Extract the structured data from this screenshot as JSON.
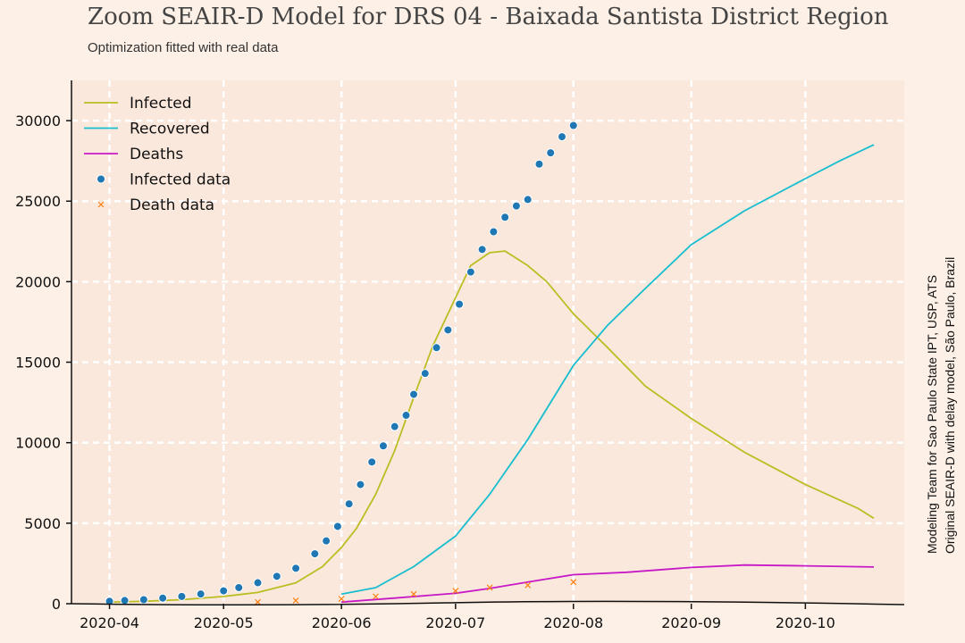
{
  "title": "Zoom SEAIR-D Model for DRS 04 - Baixada Santista District Region",
  "subtitle": "Optimization fitted with real data",
  "credits": [
    "Modeling Team for Sao Paulo State IPT, USP, ATS",
    "Original SEAIR-D with delay model, São Paulo, Brazil"
  ],
  "colors": {
    "background": "#fdf0e6",
    "plot_area": "#fae8dc",
    "infected": "#bcbd22",
    "recovered": "#17becf",
    "deaths": "#c71ac7",
    "infected_data": "#1f77b4",
    "death_data": "#ff7f0e"
  },
  "chart_data": {
    "type": "line",
    "xlabel": "",
    "ylabel": "",
    "ylim": [
      0,
      32500
    ],
    "xlim": [
      "2020-03-22",
      "2020-10-27"
    ],
    "grid": true,
    "legend_position": "top-left",
    "y_ticks": [
      0,
      5000,
      10000,
      15000,
      20000,
      25000,
      30000
    ],
    "x_ticks": [
      "2020-04",
      "2020-05",
      "2020-06",
      "2020-07",
      "2020-08",
      "2020-09",
      "2020-10"
    ],
    "series": [
      {
        "name": "Infected",
        "kind": "line",
        "points": [
          [
            "2020-04-01",
            100
          ],
          [
            "2020-04-10",
            150
          ],
          [
            "2020-04-20",
            250
          ],
          [
            "2020-05-01",
            450
          ],
          [
            "2020-05-10",
            700
          ],
          [
            "2020-05-20",
            1300
          ],
          [
            "2020-05-27",
            2300
          ],
          [
            "2020-06-01",
            3500
          ],
          [
            "2020-06-05",
            4700
          ],
          [
            "2020-06-10",
            6800
          ],
          [
            "2020-06-15",
            9500
          ],
          [
            "2020-06-20",
            12800
          ],
          [
            "2020-06-25",
            16000
          ],
          [
            "2020-07-01",
            19000
          ],
          [
            "2020-07-05",
            21000
          ],
          [
            "2020-07-10",
            21800
          ],
          [
            "2020-07-14",
            21900
          ],
          [
            "2020-07-20",
            21000
          ],
          [
            "2020-07-25",
            20000
          ],
          [
            "2020-08-01",
            18000
          ],
          [
            "2020-08-10",
            15900
          ],
          [
            "2020-08-20",
            13500
          ],
          [
            "2020-09-01",
            11500
          ],
          [
            "2020-09-15",
            9400
          ],
          [
            "2020-10-01",
            7400
          ],
          [
            "2020-10-15",
            5900
          ],
          [
            "2020-10-19",
            5300
          ]
        ]
      },
      {
        "name": "Recovered",
        "kind": "line",
        "points": [
          [
            "2020-06-01",
            600
          ],
          [
            "2020-06-10",
            1000
          ],
          [
            "2020-06-20",
            2300
          ],
          [
            "2020-07-01",
            4200
          ],
          [
            "2020-07-10",
            6800
          ],
          [
            "2020-07-20",
            10200
          ],
          [
            "2020-08-01",
            14800
          ],
          [
            "2020-08-10",
            17300
          ],
          [
            "2020-08-20",
            19600
          ],
          [
            "2020-09-01",
            22300
          ],
          [
            "2020-09-15",
            24400
          ],
          [
            "2020-10-01",
            26400
          ],
          [
            "2020-10-10",
            27500
          ],
          [
            "2020-10-19",
            28500
          ]
        ]
      },
      {
        "name": "Deaths",
        "kind": "line",
        "points": [
          [
            "2020-06-01",
            100
          ],
          [
            "2020-06-15",
            350
          ],
          [
            "2020-07-01",
            650
          ],
          [
            "2020-07-10",
            950
          ],
          [
            "2020-07-20",
            1350
          ],
          [
            "2020-08-01",
            1800
          ],
          [
            "2020-08-15",
            1950
          ],
          [
            "2020-09-01",
            2250
          ],
          [
            "2020-09-15",
            2400
          ],
          [
            "2020-10-01",
            2350
          ],
          [
            "2020-10-19",
            2280
          ]
        ]
      },
      {
        "name": "Infected data",
        "kind": "scatter",
        "points": [
          [
            "2020-04-01",
            150
          ],
          [
            "2020-04-05",
            200
          ],
          [
            "2020-04-10",
            250
          ],
          [
            "2020-04-15",
            350
          ],
          [
            "2020-04-20",
            450
          ],
          [
            "2020-04-25",
            600
          ],
          [
            "2020-05-01",
            800
          ],
          [
            "2020-05-05",
            1000
          ],
          [
            "2020-05-10",
            1300
          ],
          [
            "2020-05-15",
            1700
          ],
          [
            "2020-05-20",
            2200
          ],
          [
            "2020-05-25",
            3100
          ],
          [
            "2020-05-28",
            3900
          ],
          [
            "2020-05-31",
            4800
          ],
          [
            "2020-06-03",
            6200
          ],
          [
            "2020-06-06",
            7400
          ],
          [
            "2020-06-09",
            8800
          ],
          [
            "2020-06-12",
            9800
          ],
          [
            "2020-06-15",
            11000
          ],
          [
            "2020-06-18",
            11700
          ],
          [
            "2020-06-20",
            13000
          ],
          [
            "2020-06-23",
            14300
          ],
          [
            "2020-06-26",
            15900
          ],
          [
            "2020-06-29",
            17000
          ],
          [
            "2020-07-02",
            18600
          ],
          [
            "2020-07-05",
            20600
          ],
          [
            "2020-07-08",
            22000
          ],
          [
            "2020-07-11",
            23100
          ],
          [
            "2020-07-14",
            24000
          ],
          [
            "2020-07-17",
            24700
          ],
          [
            "2020-07-20",
            25100
          ],
          [
            "2020-07-23",
            27300
          ],
          [
            "2020-07-26",
            28000
          ],
          [
            "2020-07-29",
            29000
          ],
          [
            "2020-08-01",
            29700
          ]
        ]
      },
      {
        "name": "Death data",
        "kind": "scatter",
        "marker": "x",
        "points": [
          [
            "2020-05-10",
            100
          ],
          [
            "2020-05-20",
            200
          ],
          [
            "2020-06-01",
            300
          ],
          [
            "2020-06-10",
            450
          ],
          [
            "2020-06-20",
            600
          ],
          [
            "2020-07-01",
            800
          ],
          [
            "2020-07-10",
            1000
          ],
          [
            "2020-07-20",
            1150
          ],
          [
            "2020-08-01",
            1350
          ]
        ]
      }
    ]
  }
}
